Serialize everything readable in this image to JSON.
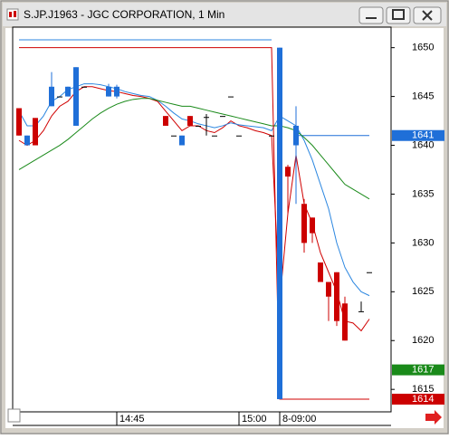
{
  "window": {
    "title": "S.JP.J1963 - JGC CORPORATION, 1 Min"
  },
  "chart_data": {
    "type": "candlestick",
    "categories": [
      null,
      null,
      null,
      null,
      null,
      null,
      null,
      null,
      null,
      null,
      null,
      null,
      "14:45",
      null,
      null,
      null,
      null,
      null,
      null,
      null,
      null,
      null,
      null,
      null,
      null,
      null,
      null,
      "15:00",
      null,
      null,
      null,
      null,
      "8-09:00",
      null,
      null,
      null,
      null,
      null,
      null,
      null,
      null,
      null,
      null,
      null
    ],
    "candles": [
      {
        "open": 1643.8,
        "high": 1643.8,
        "low": 1641,
        "close": 1641
      },
      {
        "open": 1640,
        "high": 1641,
        "low": 1640,
        "close": 1641
      },
      {
        "open": 1642.8,
        "high": 1642.8,
        "low": 1640,
        "close": 1640
      },
      null,
      {
        "open": 1644,
        "high": 1647.5,
        "low": 1644,
        "close": 1646
      },
      {
        "open": 1645,
        "high": 1645,
        "low": 1645,
        "close": 1645
      },
      {
        "open": 1645,
        "high": 1646,
        "low": 1645,
        "close": 1646
      },
      {
        "open": 1642,
        "high": 1648,
        "low": 1642,
        "close": 1648
      },
      {
        "open": 1646,
        "high": 1646,
        "low": 1646,
        "close": 1646
      },
      null,
      null,
      {
        "open": 1645,
        "high": 1646.3,
        "low": 1645,
        "close": 1646
      },
      {
        "open": 1645,
        "high": 1646.2,
        "low": 1644.8,
        "close": 1646
      },
      null,
      null,
      null,
      null,
      null,
      {
        "open": 1643,
        "high": 1643,
        "low": 1642,
        "close": 1642
      },
      {
        "open": 1641,
        "high": 1641,
        "low": 1641,
        "close": 1641
      },
      {
        "open": 1640,
        "high": 1641,
        "low": 1640,
        "close": 1641
      },
      {
        "open": 1643,
        "high": 1643,
        "low": 1642,
        "close": 1642
      },
      {
        "open": 1642,
        "high": 1642,
        "low": 1642,
        "close": 1642
      },
      {
        "open": 1642.9,
        "high": 1643.2,
        "low": 1641,
        "close": 1642.9
      },
      {
        "open": 1641,
        "high": 1641,
        "low": 1641,
        "close": 1641
      },
      {
        "open": 1643,
        "high": 1643,
        "low": 1643,
        "close": 1643
      },
      {
        "open": 1645,
        "high": 1645,
        "low": 1645,
        "close": 1645
      },
      {
        "open": 1641,
        "high": 1641,
        "low": 1641,
        "close": 1641
      },
      null,
      null,
      null,
      {
        "open": 1641,
        "high": 1641,
        "low": 1641,
        "close": 1641
      },
      {
        "open": 1614,
        "high": 1650,
        "low": 1614,
        "close": 1650
      },
      {
        "open": 1637.8,
        "high": 1638,
        "low": 1633,
        "close": 1636.8
      },
      {
        "open": 1640,
        "high": 1644,
        "low": 1634,
        "close": 1642
      },
      {
        "open": 1634,
        "high": 1634.5,
        "low": 1629,
        "close": 1630
      },
      {
        "open": 1632.6,
        "high": 1632.6,
        "low": 1630,
        "close": 1631
      },
      {
        "open": 1628,
        "high": 1628,
        "low": 1626,
        "close": 1626
      },
      {
        "open": 1626,
        "high": 1626,
        "low": 1622,
        "close": 1624.5
      },
      {
        "open": 1627,
        "high": 1627,
        "low": 1621.5,
        "close": 1622
      },
      {
        "open": 1623.8,
        "high": 1624.5,
        "low": 1620,
        "close": 1620
      },
      null,
      {
        "open": 1623,
        "high": 1624,
        "low": 1623,
        "close": 1623
      },
      {
        "open": 1627,
        "high": 1627,
        "low": 1627,
        "close": 1627
      }
    ],
    "up_color": "#1f6fd8",
    "down_color": "#cc0000",
    "series": [
      {
        "color": "#d00000",
        "values": [
          1640.5,
          1640,
          1640.5,
          1641.5,
          1643,
          1644,
          1644.5,
          1645.5,
          1646,
          1646,
          1645.8,
          1645.6,
          1645.5,
          1645.3,
          1645.1,
          1645,
          1644.8,
          1644.5,
          1643.5,
          1642.5,
          1641.5,
          1642,
          1642,
          1641.5,
          1641.3,
          1641.8,
          1642.5,
          1642,
          1641.8,
          1641.5,
          1641.3,
          1641,
          1624,
          1633,
          1639,
          1634,
          1632,
          1629,
          1627,
          1625,
          1622,
          1621.8,
          1621,
          1622.2
        ]
      },
      {
        "color": "#2b86e0",
        "values": [
          1643.5,
          1642,
          1642,
          1643,
          1644.5,
          1645,
          1645.7,
          1646,
          1646.3,
          1646.3,
          1646.2,
          1646,
          1645.8,
          1645.5,
          1645.3,
          1645.1,
          1645,
          1644.6,
          1644,
          1643.3,
          1642.7,
          1642.5,
          1642.2,
          1642,
          1641.8,
          1642,
          1642.3,
          1642.1,
          1642,
          1641.9,
          1641.8,
          1641.5,
          1643,
          1642.5,
          1642,
          1640.5,
          1638.5,
          1636,
          1633.5,
          1630,
          1627.5,
          1626,
          1625,
          1624.6
        ]
      },
      {
        "color": "#1a8a1a",
        "values": [
          1637.5,
          1638,
          1638.5,
          1639,
          1639.5,
          1640,
          1640.6,
          1641.3,
          1642,
          1642.7,
          1643.3,
          1643.8,
          1644.2,
          1644.5,
          1644.7,
          1644.8,
          1644.8,
          1644.6,
          1644.4,
          1644.2,
          1644,
          1644,
          1643.8,
          1643.6,
          1643.4,
          1643.2,
          1643,
          1642.8,
          1642.6,
          1642.4,
          1642.2,
          1642,
          1642,
          1641.8,
          1641.5,
          1640.8,
          1640,
          1639,
          1638,
          1637,
          1636,
          1635.5,
          1635,
          1634.5
        ]
      },
      {
        "color": "#d00000",
        "values": [
          1650,
          1650,
          1650,
          1650,
          1650,
          1650,
          1650,
          1650,
          1650,
          1650,
          1650,
          1650,
          1650,
          1650,
          1650,
          1650,
          1650,
          1650,
          1650,
          1650,
          1650,
          1650,
          1650,
          1650,
          1650,
          1650,
          1650,
          1650,
          1650,
          1650,
          1650,
          1650,
          1614,
          1614,
          1614,
          1614,
          1614,
          1614,
          1614,
          1614,
          1614,
          1614,
          1614,
          1614
        ]
      },
      {
        "color": "#2b86e0",
        "values": [
          1650.8,
          1650.8,
          1650.8,
          1650.8,
          1650.8,
          1650.8,
          1650.8,
          1650.8,
          1650.8,
          1650.8,
          1650.8,
          1650.8,
          1650.8,
          1650.8,
          1650.8,
          1650.8,
          1650.8,
          1650.8,
          1650.8,
          1650.8,
          1650.8,
          1650.8,
          1650.8,
          1650.8,
          1650.8,
          1650.8,
          1650.8,
          1650.8,
          1650.8,
          1650.8,
          1650.8,
          1650.8,
          null,
          null,
          null,
          null,
          null,
          null,
          null,
          null,
          null,
          null,
          null,
          null
        ]
      }
    ],
    "ylim": [
      1612.7,
      1652.1
    ],
    "yticks": [
      1615,
      1620,
      1625,
      1630,
      1635,
      1640,
      1645,
      1650
    ],
    "price_levels": [
      {
        "value": 1641,
        "color": "#1f6fd8"
      },
      {
        "value": 1617,
        "color": "#1a8a1a"
      },
      {
        "value": 1614,
        "color": "#cc0000"
      }
    ]
  }
}
